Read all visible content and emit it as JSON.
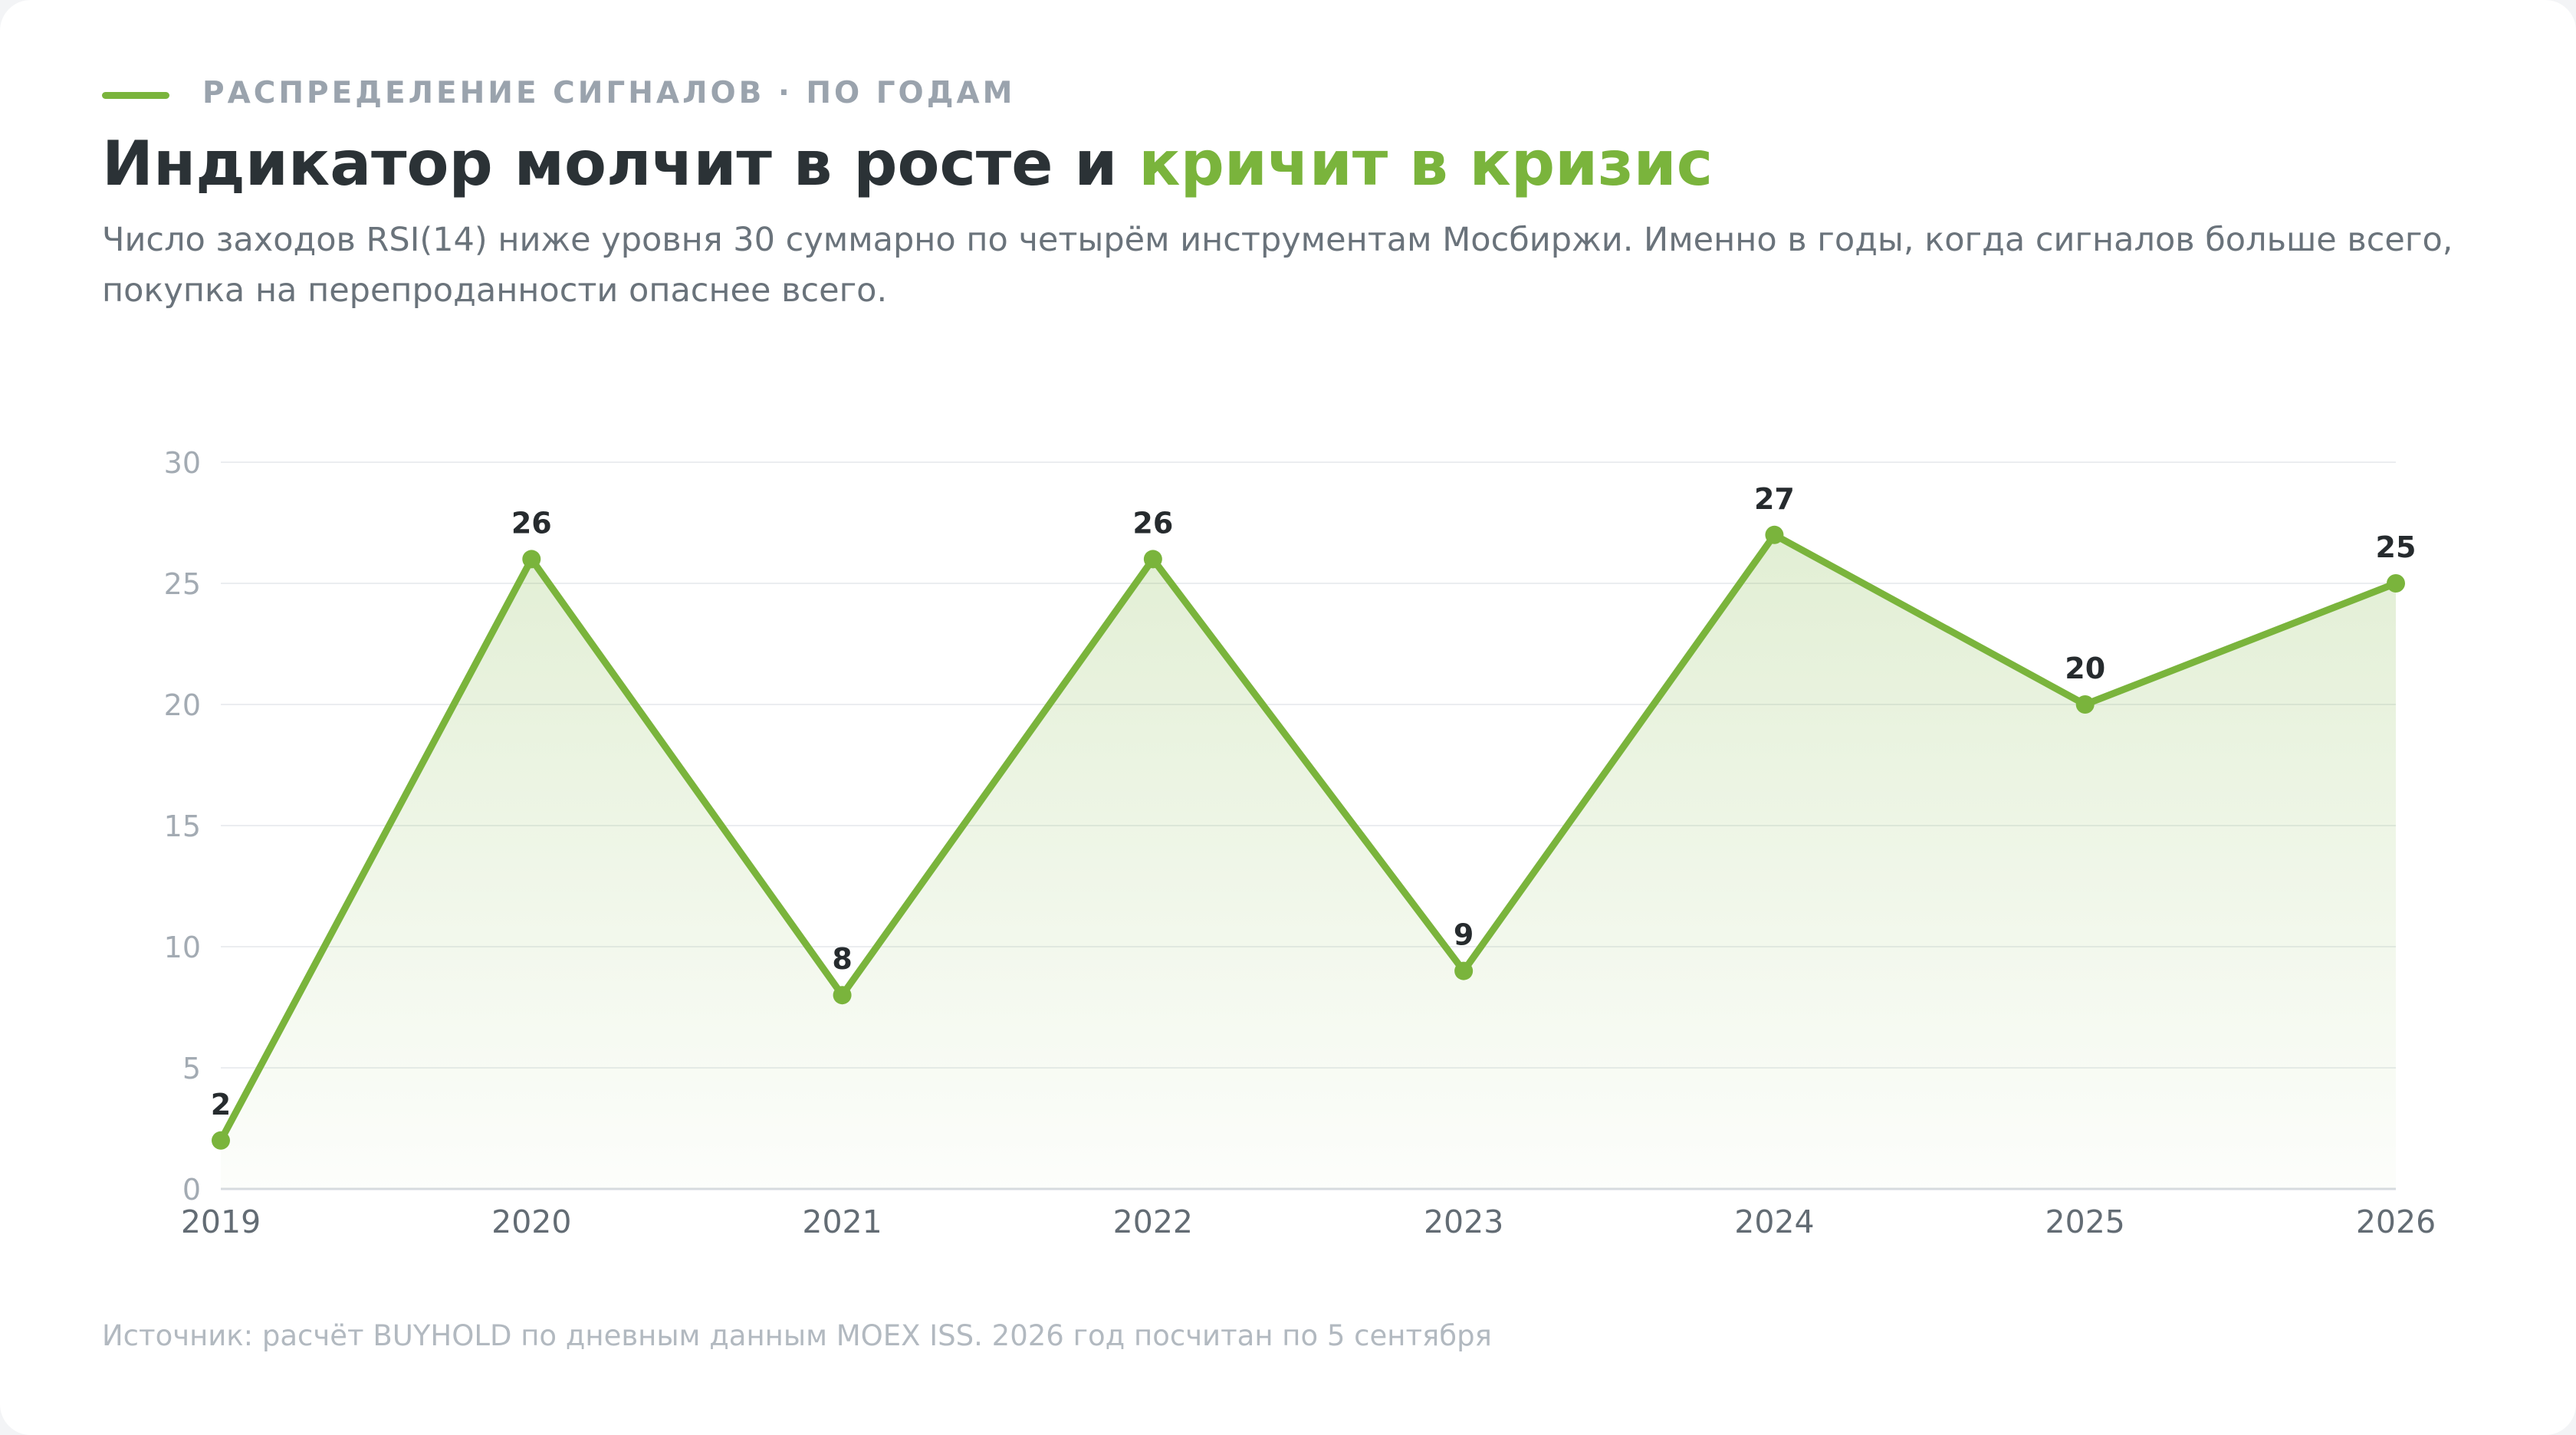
{
  "header": {
    "eyebrow": "РАСПРЕДЕЛЕНИЕ СИГНАЛОВ · ПО ГОДАМ",
    "title_main": "Индикатор молчит в росте и ",
    "title_accent": "кричит в кризис",
    "subtitle": "Число заходов RSI(14) ниже уровня 30 суммарно по четырём инструментам Мосбиржи. Именно в годы, когда сигналов больше всего, покупка на перепроданности опаснее всего."
  },
  "colors": {
    "accent": "#7ab43c",
    "title": "#2b3236",
    "grid": "#ebedf0",
    "axis": "#d7dbe0"
  },
  "chart_data": {
    "type": "area",
    "categories": [
      "2019",
      "2020",
      "2021",
      "2022",
      "2023",
      "2024",
      "2025",
      "2026"
    ],
    "values": [
      2,
      26,
      8,
      26,
      9,
      27,
      20,
      25
    ],
    "ylim": [
      0,
      30
    ],
    "yticks": [
      0,
      5,
      10,
      15,
      20,
      25,
      30
    ],
    "title": "",
    "xlabel": "",
    "ylabel": "",
    "grid": true,
    "legend": "none",
    "data_labels": true
  },
  "footer": {
    "source": "Источник: расчёт BUYHOLD по дневным данным MOEX ISS. 2026 год посчитан по 5 сентября"
  }
}
